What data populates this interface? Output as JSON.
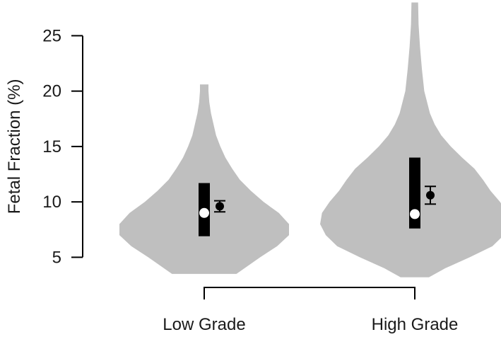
{
  "chart_data": {
    "type": "violin",
    "title": "",
    "xlabel": "",
    "ylabel": "Fetal Fraction (%)",
    "ylim": [
      3.3,
      28
    ],
    "yticks": [
      5,
      10,
      15,
      20,
      25
    ],
    "categories": [
      "Low Grade",
      "High Grade"
    ],
    "grid": false,
    "legend": "none",
    "colors": {
      "violin": "#bfbfbf",
      "box": "#000000",
      "median": "#ffffff",
      "mean": "#000000"
    },
    "violins": [
      {
        "category": "Low Grade",
        "min": 3.5,
        "max": 20.6,
        "q1": 6.9,
        "q3": 11.7,
        "median": 9.0,
        "mean": 9.6,
        "ci_low": 9.1,
        "ci_high": 10.1,
        "density_profile": [
          [
            3.5,
            0.38
          ],
          [
            5.0,
            0.66
          ],
          [
            6.0,
            0.86
          ],
          [
            7.0,
            1.0
          ],
          [
            8.0,
            1.0
          ],
          [
            9.0,
            0.88
          ],
          [
            10.0,
            0.7
          ],
          [
            11.0,
            0.55
          ],
          [
            12.0,
            0.42
          ],
          [
            13.0,
            0.33
          ],
          [
            14.0,
            0.25
          ],
          [
            15.0,
            0.19
          ],
          [
            16.0,
            0.14
          ],
          [
            17.0,
            0.11
          ],
          [
            18.0,
            0.08
          ],
          [
            19.0,
            0.06
          ],
          [
            20.0,
            0.05
          ],
          [
            20.6,
            0.05
          ]
        ]
      },
      {
        "category": "High Grade",
        "min": 3.2,
        "max": 28.0,
        "q1": 7.6,
        "q3": 14.0,
        "median": 8.9,
        "mean": 10.6,
        "ci_low": 9.8,
        "ci_high": 11.4,
        "density_profile": [
          [
            3.2,
            0.15
          ],
          [
            4.0,
            0.32
          ],
          [
            5.0,
            0.58
          ],
          [
            6.0,
            0.82
          ],
          [
            7.0,
            0.94
          ],
          [
            8.0,
            1.0
          ],
          [
            9.0,
            0.98
          ],
          [
            10.0,
            0.9
          ],
          [
            11.0,
            0.8
          ],
          [
            12.0,
            0.72
          ],
          [
            13.0,
            0.63
          ],
          [
            14.0,
            0.5
          ],
          [
            15.0,
            0.38
          ],
          [
            16.0,
            0.28
          ],
          [
            17.0,
            0.21
          ],
          [
            18.0,
            0.16
          ],
          [
            20.0,
            0.1
          ],
          [
            22.0,
            0.075
          ],
          [
            24.0,
            0.055
          ],
          [
            26.0,
            0.04
          ],
          [
            28.0,
            0.035
          ]
        ]
      }
    ]
  }
}
